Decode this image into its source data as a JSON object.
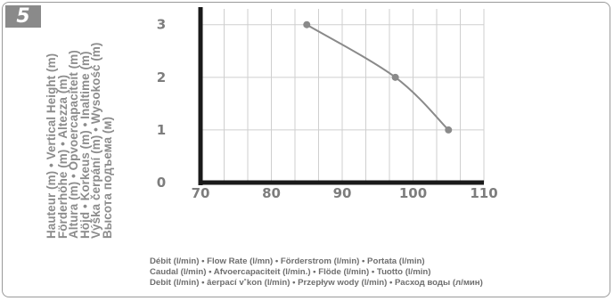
{
  "figure_number": "5",
  "ylabel_lines": [
    "Hauteur (m) • Vertical Height (m)",
    "Förderhöhe (m) • Altezza (m)",
    "Altura (m) • Opvoercapaciteit (m)",
    "Höjd • Korkeus (m) • Inaltime (m)",
    "Výška čerpání (m) • Wysokość (m)",
    "Высота подъема (м)"
  ],
  "xlabel_lines": [
    "Débit (l/min) • Flow Rate (l/mn) • Förderstrom (l/min) • Portata (l/min)",
    "Caudal (l/min) • Afvoercapaciteit (l/min.) • Flöde (l/min) • Tuotto (l/min)",
    "Debit (l/min) • âerpací v˚kon (l/min) • Przepływ wody (l/min) • Расход воды (л/мин)"
  ],
  "colors": {
    "curve": "#8a8a8a",
    "axis": "#1a1a1a",
    "grid": "#cfcfcf",
    "ticks": "#7d7d7d"
  },
  "chart_data": {
    "type": "line",
    "title": "",
    "x": [
      85,
      97.5,
      105
    ],
    "series": [
      {
        "values": [
          3,
          2,
          1
        ]
      }
    ],
    "xlim": [
      70,
      110
    ],
    "ylim": [
      0,
      3.3
    ],
    "xticks": [
      70,
      80,
      90,
      100,
      110
    ],
    "yticks": [
      0,
      1,
      2,
      3
    ],
    "grid": true
  }
}
